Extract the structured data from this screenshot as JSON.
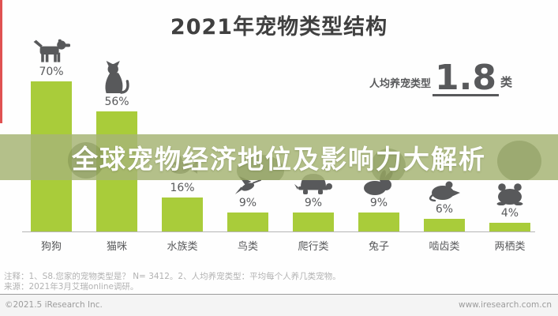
{
  "page": {
    "title": "2021年宠物类型结构",
    "banner_text": "全球宠物经济地位及影响力大解析",
    "per_capita": {
      "label": "人均养宠类型",
      "value": "1.8",
      "unit": "类"
    },
    "notes_line1": "注释：1、S8.您家的宠物类型是？ N= 3412。2、人均养宠类型：平均每个人养几类宠物。",
    "notes_line2": "来源：2021年3月艾瑞online调研。",
    "footer_left": "©2021.5 iResearch Inc.",
    "footer_right": "www.iresearch.com.cn"
  },
  "colors": {
    "bar": "#a9cc3a",
    "banner_overlay": "rgba(167,181,118,0.85)",
    "icon": "#58595b",
    "accent_red": "#e05252",
    "title_text": "#404040",
    "footnote_text": "#b2b2b2"
  },
  "chart_data": {
    "type": "bar",
    "title": "2021年宠物类型结构",
    "categories": [
      "狗狗",
      "猫咪",
      "水族类",
      "鸟类",
      "爬行类",
      "兔子",
      "啮齿类",
      "两栖类"
    ],
    "values": [
      70,
      56,
      16,
      9,
      9,
      9,
      6,
      4
    ],
    "value_labels": [
      "70%",
      "56%",
      "16%",
      "9%",
      "9%",
      "9%",
      "6%",
      "4%"
    ],
    "icons": [
      "dog-icon",
      "cat-icon",
      "fish-icon",
      "bird-icon",
      "turtle-icon",
      "rabbit-icon",
      "mouse-icon",
      "frog-icon"
    ],
    "ylabel": "",
    "xlabel": "",
    "ylim": [
      0,
      100
    ],
    "grid": false,
    "legend": null,
    "annotation": "人均养宠类型 1.8 类"
  }
}
